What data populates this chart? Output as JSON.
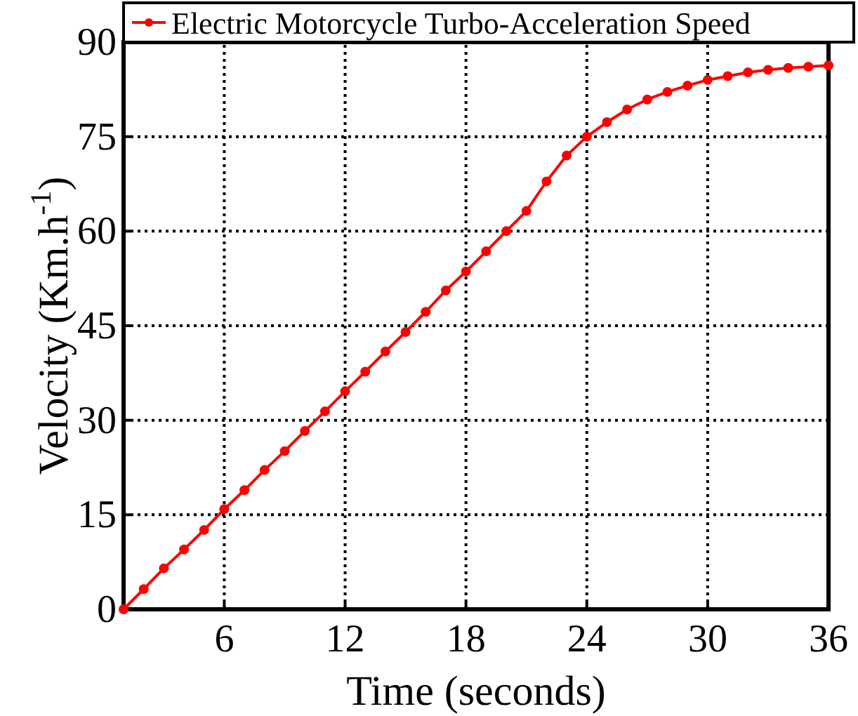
{
  "chart_data": {
    "type": "line",
    "xlabel": "Time (seconds)",
    "ylabel": "Velocity (Km.h$^{-1}$)",
    "x": [
      1,
      2,
      3,
      4,
      5,
      6,
      7,
      8,
      9,
      10,
      11,
      12,
      13,
      14,
      15,
      16,
      17,
      18,
      19,
      20,
      21,
      22,
      23,
      24,
      25,
      26,
      27,
      28,
      29,
      30,
      31,
      32,
      33,
      34,
      35,
      36
    ],
    "series": [
      {
        "name": "Electric Motorcycle Turbo-Acceleration Speed",
        "color": "#ff0000",
        "values": [
          0,
          3.2,
          6.5,
          9.5,
          12.6,
          15.9,
          18.9,
          22.1,
          25.1,
          28.3,
          31.4,
          34.6,
          37.7,
          40.9,
          44.0,
          47.2,
          50.6,
          53.6,
          56.8,
          60.0,
          63.2,
          67.9,
          72.0,
          75.0,
          77.3,
          79.3,
          80.9,
          82.1,
          83.1,
          84.0,
          84.6,
          85.2,
          85.6,
          85.9,
          86.1,
          86.3
        ]
      }
    ],
    "xlim": [
      1,
      36
    ],
    "xticks": [
      6,
      12,
      18,
      24,
      30,
      36
    ],
    "ylim": [
      0,
      90
    ],
    "yticks": [
      0,
      15,
      30,
      45,
      60,
      75,
      90
    ],
    "grid": true,
    "legend": "top",
    "marker": "circle",
    "line_style": "solid"
  }
}
